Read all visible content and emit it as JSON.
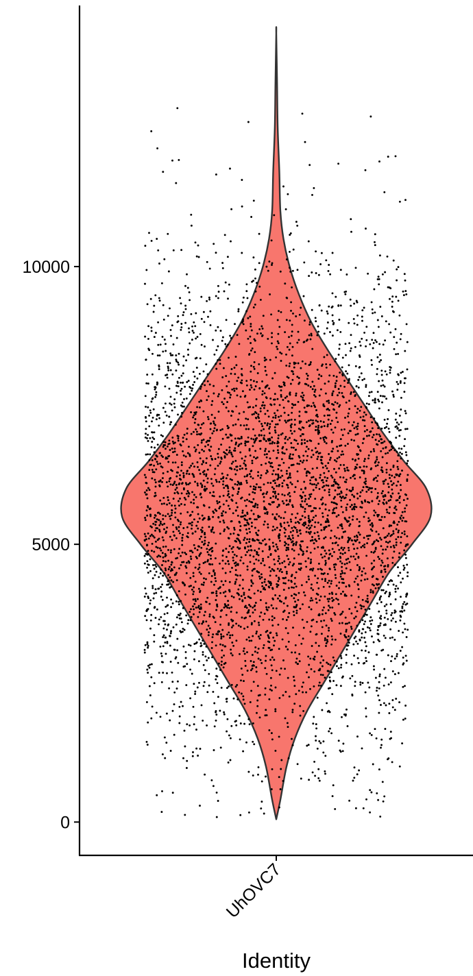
{
  "chart_data": {
    "type": "violin",
    "title": "",
    "xlabel": "Identity",
    "ylabel": "",
    "categories": [
      "UhOVC7"
    ],
    "ylim": [
      -600,
      14700
    ],
    "y_ticks": [
      0,
      5000,
      10000
    ],
    "y_tick_labels": [
      "0",
      "5000",
      "10000"
    ],
    "legend": "none",
    "grid": false,
    "series": [
      {
        "category": "UhOVC7",
        "min": 50,
        "max": 14200,
        "peak_density_at": 5600,
        "point_count_approx": 4500,
        "density_profile": [
          {
            "y": 50,
            "halfwidth": 0.0
          },
          {
            "y": 400,
            "halfwidth": 0.02
          },
          {
            "y": 1000,
            "halfwidth": 0.05
          },
          {
            "y": 1500,
            "halfwidth": 0.09
          },
          {
            "y": 2000,
            "halfwidth": 0.15
          },
          {
            "y": 2500,
            "halfwidth": 0.23
          },
          {
            "y": 3000,
            "halfwidth": 0.31
          },
          {
            "y": 3500,
            "halfwidth": 0.39
          },
          {
            "y": 4000,
            "halfwidth": 0.47
          },
          {
            "y": 4500,
            "halfwidth": 0.55
          },
          {
            "y": 5000,
            "halfwidth": 0.66
          },
          {
            "y": 5500,
            "halfwidth": 0.75
          },
          {
            "y": 6000,
            "halfwidth": 0.73
          },
          {
            "y": 6500,
            "halfwidth": 0.62
          },
          {
            "y": 7000,
            "halfwidth": 0.52
          },
          {
            "y": 7500,
            "halfwidth": 0.43
          },
          {
            "y": 8000,
            "halfwidth": 0.34
          },
          {
            "y": 8500,
            "halfwidth": 0.25
          },
          {
            "y": 9000,
            "halfwidth": 0.17
          },
          {
            "y": 9500,
            "halfwidth": 0.11
          },
          {
            "y": 10000,
            "halfwidth": 0.065
          },
          {
            "y": 10500,
            "halfwidth": 0.035
          },
          {
            "y": 11000,
            "halfwidth": 0.02
          },
          {
            "y": 11700,
            "halfwidth": 0.015
          },
          {
            "y": 12500,
            "halfwidth": 0.007
          },
          {
            "y": 13300,
            "halfwidth": 0.004
          },
          {
            "y": 14200,
            "halfwidth": 0.0
          }
        ],
        "fill": "#F8766D",
        "stroke": "#333333",
        "point_color": "#000000"
      }
    ]
  }
}
